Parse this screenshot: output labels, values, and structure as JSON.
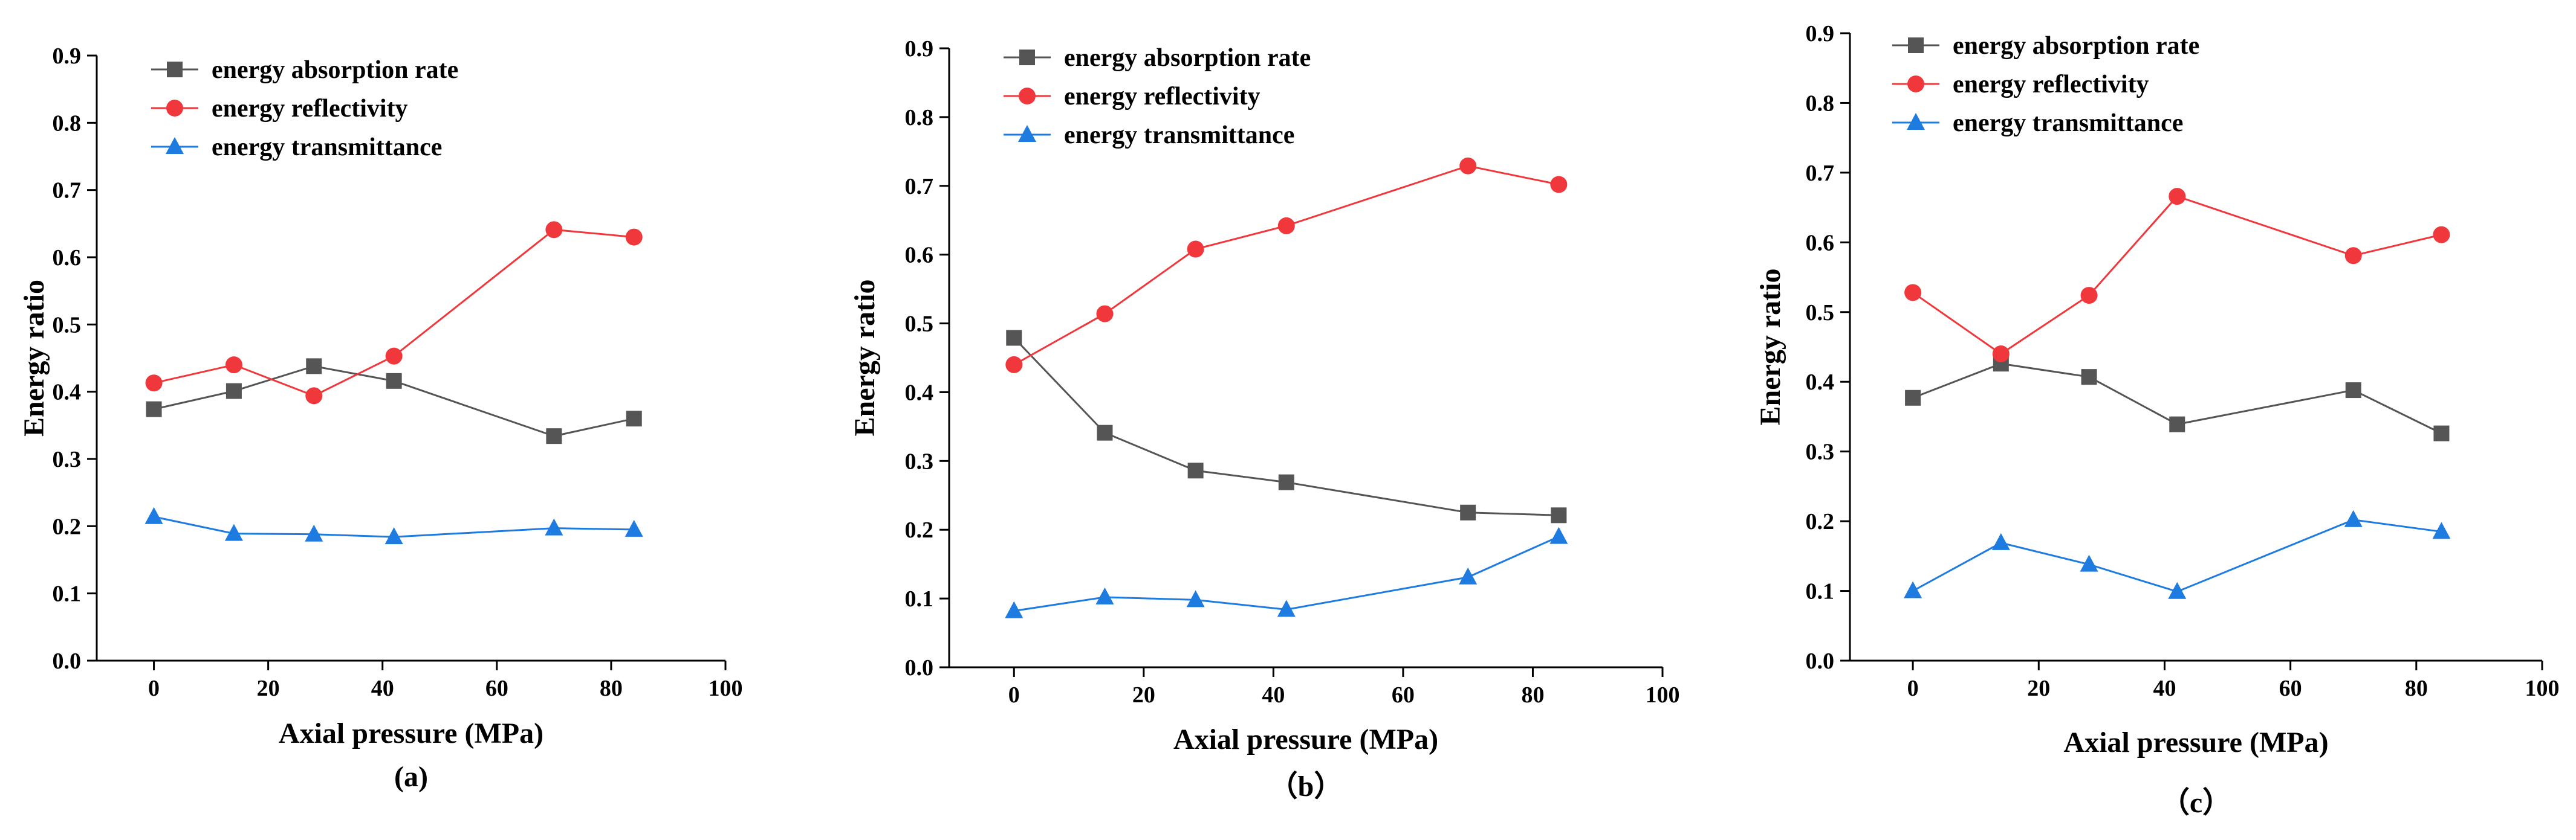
{
  "figure": {
    "legend_labels": [
      "energy absorption rate",
      "energy reflectivity",
      "energy transmittance"
    ]
  },
  "chart_data": [
    {
      "type": "line",
      "panel_label": "(a)",
      "xlabel": "Axial pressure (MPa)",
      "ylabel": "Energy ratio",
      "xlim": [
        -10,
        100
      ],
      "ylim": [
        0,
        0.9
      ],
      "xticks": [
        "0",
        "20",
        "40",
        "60",
        "80",
        "100"
      ],
      "yticks": [
        "0.0",
        "0.1",
        "0.2",
        "0.3",
        "0.4",
        "0.5",
        "0.6",
        "0.7",
        "0.8",
        "0.9"
      ],
      "x": [
        0,
        14,
        28,
        42,
        70,
        84
      ],
      "legend_position": "top-left",
      "series": [
        {
          "name": "energy absorption rate",
          "color": "#555555",
          "marker": "square",
          "values": [
            0.374,
            0.401,
            0.438,
            0.416,
            0.334,
            0.36
          ]
        },
        {
          "name": "energy reflectivity",
          "color": "#f0373c",
          "marker": "circle",
          "values": [
            0.413,
            0.44,
            0.394,
            0.453,
            0.641,
            0.63
          ]
        },
        {
          "name": "energy transmittance",
          "color": "#1e7be0",
          "marker": "triangle",
          "values": [
            0.214,
            0.189,
            0.188,
            0.184,
            0.197,
            0.195
          ]
        }
      ]
    },
    {
      "type": "line",
      "panel_label": "（b）",
      "xlabel": "Axial pressure (MPa)",
      "ylabel": "Energy ratio",
      "xlim": [
        -10,
        100
      ],
      "ylim": [
        0,
        0.9
      ],
      "xticks": [
        "0",
        "20",
        "40",
        "60",
        "80",
        "100"
      ],
      "yticks": [
        "0.0",
        "0.1",
        "0.2",
        "0.3",
        "0.4",
        "0.5",
        "0.6",
        "0.7",
        "0.8",
        "0.9"
      ],
      "x": [
        0,
        14,
        28,
        42,
        70,
        84
      ],
      "legend_position": "top-left",
      "series": [
        {
          "name": "energy absorption rate",
          "color": "#555555",
          "marker": "square",
          "values": [
            0.479,
            0.341,
            0.286,
            0.269,
            0.225,
            0.221
          ]
        },
        {
          "name": "energy reflectivity",
          "color": "#f0373c",
          "marker": "circle",
          "values": [
            0.44,
            0.514,
            0.608,
            0.642,
            0.729,
            0.702
          ]
        },
        {
          "name": "energy transmittance",
          "color": "#1e7be0",
          "marker": "triangle",
          "values": [
            0.082,
            0.102,
            0.098,
            0.084,
            0.131,
            0.19
          ]
        }
      ]
    },
    {
      "type": "line",
      "panel_label": "（c）",
      "xlabel": "Axial pressure (MPa)",
      "ylabel": "Energy ratio",
      "xlim": [
        -10,
        100
      ],
      "ylim": [
        0,
        0.9
      ],
      "xticks": [
        "0",
        "20",
        "40",
        "60",
        "80",
        "100"
      ],
      "yticks": [
        "0.0",
        "0.1",
        "0.2",
        "0.3",
        "0.4",
        "0.5",
        "0.6",
        "0.7",
        "0.8",
        "0.9"
      ],
      "x": [
        0,
        14,
        28,
        42,
        70,
        84
      ],
      "legend_position": "top-left",
      "series": [
        {
          "name": "energy absorption rate",
          "color": "#555555",
          "marker": "square",
          "values": [
            0.377,
            0.426,
            0.407,
            0.339,
            0.388,
            0.326
          ]
        },
        {
          "name": "energy reflectivity",
          "color": "#f0373c",
          "marker": "circle",
          "values": [
            0.528,
            0.44,
            0.524,
            0.666,
            0.581,
            0.611
          ]
        },
        {
          "name": "energy transmittance",
          "color": "#1e7be0",
          "marker": "triangle",
          "values": [
            0.1,
            0.169,
            0.138,
            0.099,
            0.202,
            0.185
          ]
        }
      ]
    }
  ]
}
